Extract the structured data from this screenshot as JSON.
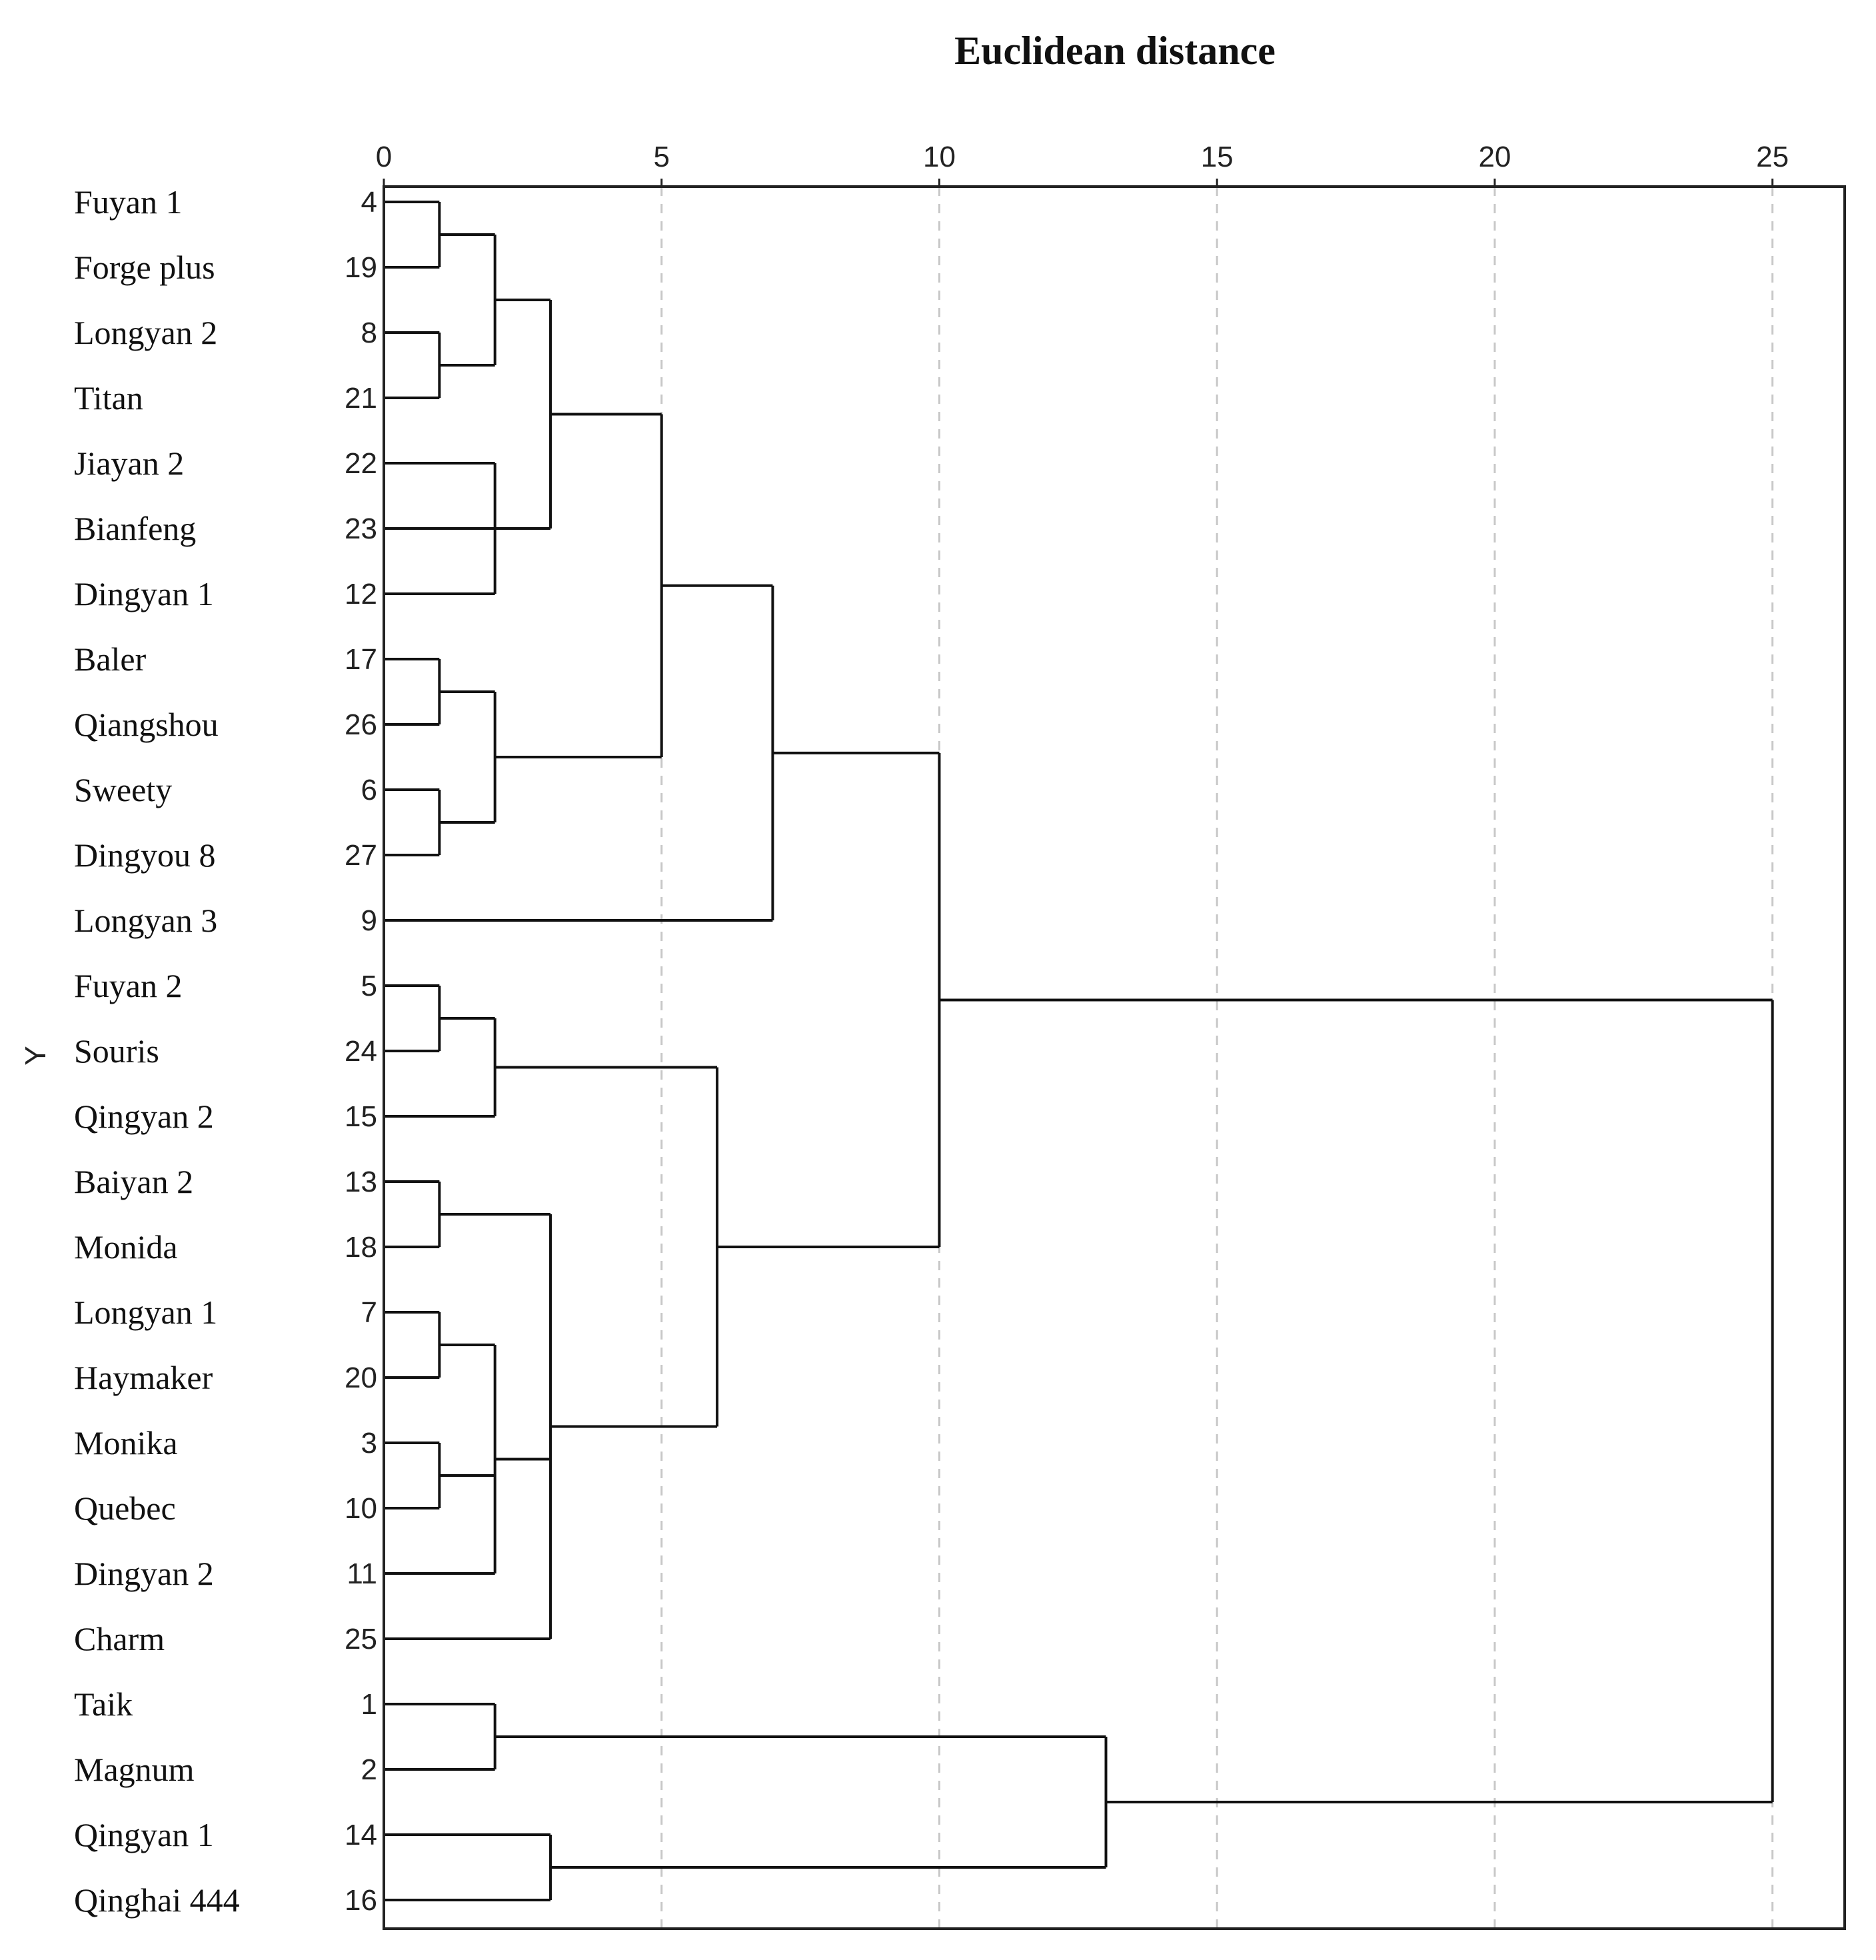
{
  "chart_data": {
    "type": "dendrogram",
    "title": "Euclidean distance",
    "ylabel": "Y",
    "xlim": [
      0,
      26.3
    ],
    "x_ticks": [
      "0",
      "5",
      "10",
      "15",
      "20",
      "25"
    ],
    "x_tick_values": [
      0,
      5,
      10,
      15,
      20,
      25
    ],
    "grid": "vertical-dashed",
    "leaves": [
      {
        "name": "Fuyan 1",
        "id": "4"
      },
      {
        "name": "Forge plus",
        "id": "19"
      },
      {
        "name": "Longyan 2",
        "id": "8"
      },
      {
        "name": "Titan",
        "id": "21"
      },
      {
        "name": "Jiayan 2",
        "id": "22"
      },
      {
        "name": "Bianfeng",
        "id": "23"
      },
      {
        "name": "Dingyan 1",
        "id": "12"
      },
      {
        "name": "Baler",
        "id": "17"
      },
      {
        "name": "Qiangshou",
        "id": "26"
      },
      {
        "name": "Sweety",
        "id": "6"
      },
      {
        "name": "Dingyou 8",
        "id": "27"
      },
      {
        "name": "Longyan 3",
        "id": "9"
      },
      {
        "name": "Fuyan 2",
        "id": "5"
      },
      {
        "name": "Souris",
        "id": "24"
      },
      {
        "name": "Qingyan 2",
        "id": "15"
      },
      {
        "name": "Baiyan 2",
        "id": "13"
      },
      {
        "name": "Monida",
        "id": "18"
      },
      {
        "name": "Longyan 1",
        "id": "7"
      },
      {
        "name": "Haymaker",
        "id": "20"
      },
      {
        "name": "Monika",
        "id": "3"
      },
      {
        "name": "Quebec",
        "id": "10"
      },
      {
        "name": "Dingyan 2",
        "id": "11"
      },
      {
        "name": "Charm",
        "id": "25"
      },
      {
        "name": "Taik",
        "id": "1"
      },
      {
        "name": "Magnum",
        "id": "2"
      },
      {
        "name": "Qingyan 1",
        "id": "14"
      },
      {
        "name": "Qinghai 444",
        "id": "16"
      }
    ],
    "merges": [
      {
        "children": [
          "L0",
          "L1"
        ],
        "distance": 1
      },
      {
        "children": [
          "L2",
          "L3"
        ],
        "distance": 1
      },
      {
        "children": [
          "M0",
          "M1"
        ],
        "distance": 2
      },
      {
        "children": [
          "L4",
          "L5",
          "L6"
        ],
        "distance": 2
      },
      {
        "children": [
          "M2",
          "M3"
        ],
        "distance": 3
      },
      {
        "children": [
          "L7",
          "L8"
        ],
        "distance": 1
      },
      {
        "children": [
          "L9",
          "L10"
        ],
        "distance": 1
      },
      {
        "children": [
          "M5",
          "M6"
        ],
        "distance": 2
      },
      {
        "children": [
          "M4",
          "M7"
        ],
        "distance": 5
      },
      {
        "children": [
          "M8",
          "L11"
        ],
        "distance": 7
      },
      {
        "children": [
          "L12",
          "L13"
        ],
        "distance": 1
      },
      {
        "children": [
          "M10",
          "L14"
        ],
        "distance": 2
      },
      {
        "children": [
          "L15",
          "L16"
        ],
        "distance": 1
      },
      {
        "children": [
          "L17",
          "L18"
        ],
        "distance": 1
      },
      {
        "children": [
          "L19",
          "L20"
        ],
        "distance": 1
      },
      {
        "children": [
          "M13",
          "M14",
          "L21"
        ],
        "distance": 2
      },
      {
        "children": [
          "M12",
          "M15",
          "L22"
        ],
        "distance": 3
      },
      {
        "children": [
          "M11",
          "M16"
        ],
        "distance": 6
      },
      {
        "children": [
          "M9",
          "M17"
        ],
        "distance": 10
      },
      {
        "children": [
          "L23",
          "L24"
        ],
        "distance": 2
      },
      {
        "children": [
          "L25",
          "L26"
        ],
        "distance": 3
      },
      {
        "children": [
          "M19",
          "M20"
        ],
        "distance": 13
      },
      {
        "children": [
          "M18",
          "M21"
        ],
        "distance": 25
      }
    ]
  }
}
